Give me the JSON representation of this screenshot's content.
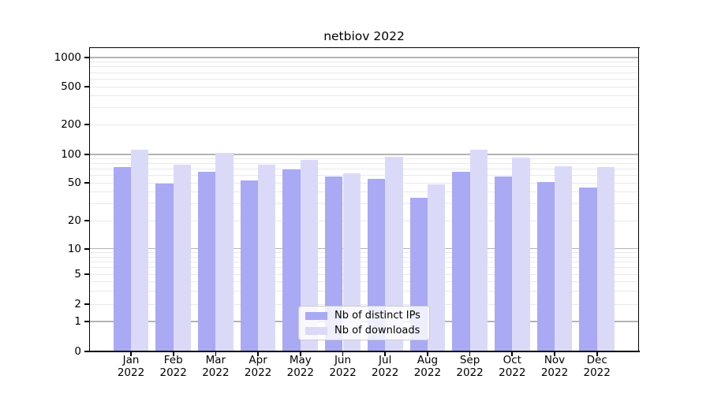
{
  "figure": {
    "background": "#ffffff"
  },
  "chart_data": {
    "type": "bar",
    "title": "netbiov 2022",
    "categories": [
      "Jan 2022",
      "Feb 2022",
      "Mar 2022",
      "Apr 2022",
      "May 2022",
      "Jun 2022",
      "Jul 2022",
      "Aug 2022",
      "Sep 2022",
      "Oct 2022",
      "Nov 2022",
      "Dec 2022"
    ],
    "series": [
      {
        "name": "Nb of distinct IPs",
        "color": "#a9a9f4",
        "values": [
          73,
          49,
          65,
          53,
          69,
          58,
          55,
          35,
          66,
          58,
          51,
          45
        ]
      },
      {
        "name": "Nb of downloads",
        "color": "#dadaf8",
        "values": [
          112,
          78,
          104,
          78,
          88,
          63,
          95,
          48,
          112,
          93,
          75,
          73
        ]
      }
    ],
    "xlabel": "",
    "ylabel": "",
    "yscale": "log-with-zero",
    "ylim": [
      0,
      1400
    ],
    "yticks": [
      1000,
      500,
      200,
      100,
      50,
      20,
      10,
      5,
      2,
      1,
      0
    ],
    "ygrid_major": [
      1,
      10,
      100,
      1000
    ],
    "ygrid_minor": [
      2,
      3,
      4,
      5,
      6,
      7,
      8,
      9,
      20,
      30,
      40,
      50,
      60,
      70,
      80,
      90,
      200,
      300,
      400,
      500,
      600,
      700,
      800,
      900
    ],
    "grid": true,
    "legend_position": "lower center (inside plot)"
  },
  "colors": {
    "major_grid": "#b3b3b3",
    "minor_grid": "#e9e9e9",
    "spine": "#000000",
    "text": "#000000",
    "legend_background": "rgba(255,255,255,0.8)",
    "legend_border": "#cccccc"
  }
}
